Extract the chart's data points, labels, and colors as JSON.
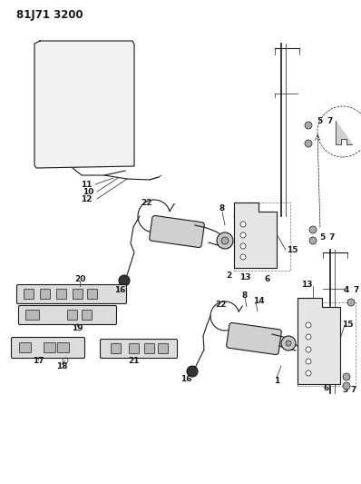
{
  "title": "81J71 3200",
  "bg_color": "#ffffff",
  "line_color": "#1a1a1a",
  "title_fontsize": 9,
  "label_fontsize": 6.5,
  "fig_width": 3.98,
  "fig_height": 5.33,
  "dpi": 100
}
